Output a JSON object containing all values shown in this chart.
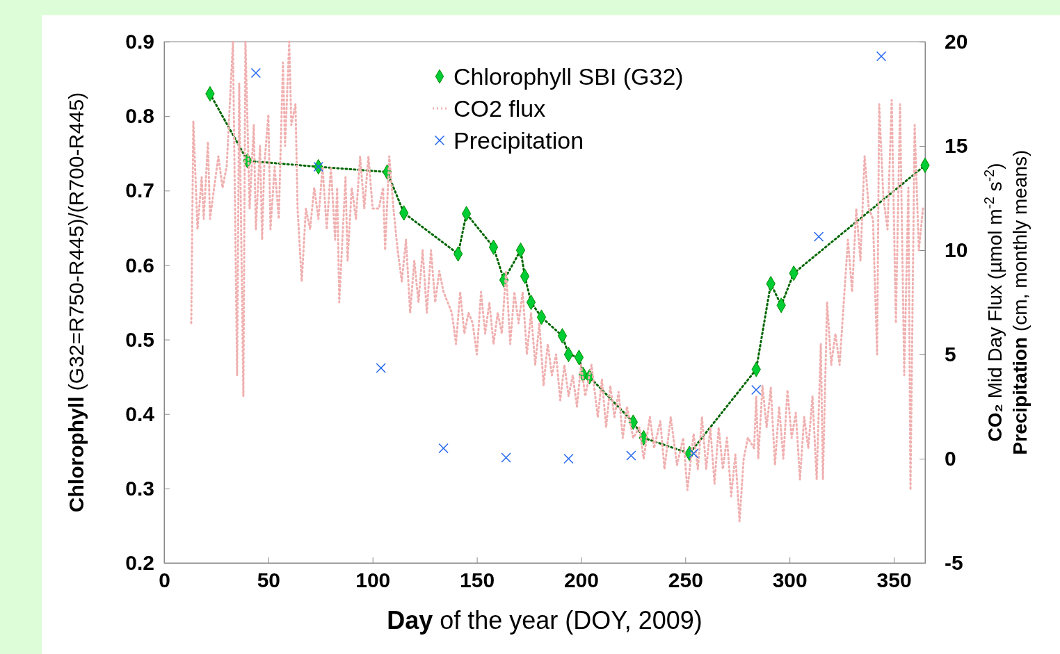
{
  "chart_data": {
    "type": "line",
    "xlabel": "Day of the year (DOY, 2009)",
    "ylabel": "Chlorophyll (G32=R750-R445)/(R700-R445)",
    "y2label": "CO₂ Mid Day Flux (µmol m$^{-2}$ s$^{-2}$)\nPrecipitation (cm, monthly means)",
    "xlim": [
      0,
      365
    ],
    "xticks": [
      0,
      50,
      100,
      150,
      200,
      250,
      300,
      350
    ],
    "ylim": [
      0.2,
      0.9
    ],
    "yticks": [
      0.2,
      0.3,
      0.4,
      0.5,
      0.6,
      0.7,
      0.8,
      0.9
    ],
    "y2lim": [
      -5,
      20
    ],
    "y2ticks": [
      -5,
      0,
      5,
      10,
      15,
      20
    ],
    "grid": false,
    "legend": "top",
    "series": [
      {
        "name": "Chlorophyll SBI (G32)",
        "color": "#00cc33",
        "marker": "diamond",
        "line_style": "dotted",
        "x": [
          22,
          40,
          74,
          107,
          115,
          141,
          145,
          158,
          163,
          171,
          173,
          176,
          181,
          191,
          194,
          199,
          201,
          204,
          225,
          230,
          252,
          284,
          291,
          296,
          302,
          365
        ],
        "values": [
          0.83,
          0.74,
          0.732,
          0.725,
          0.67,
          0.615,
          0.669,
          0.624,
          0.58,
          0.62,
          0.585,
          0.55,
          0.53,
          0.505,
          0.48,
          0.476,
          0.453,
          0.45,
          0.389,
          0.368,
          0.347,
          0.46,
          0.575,
          0.546,
          0.589,
          0.734
        ]
      },
      {
        "name": "CO2 flux",
        "axis": "y2",
        "color": "#f0b0b0",
        "marker": "none",
        "line_style": "dotted",
        "x": [
          13,
          14,
          16,
          18,
          19,
          21,
          22,
          24,
          26,
          28,
          30,
          33,
          35,
          36,
          38,
          39,
          41,
          43,
          44,
          46,
          47,
          48,
          50,
          51,
          53,
          55,
          57,
          58,
          60,
          61,
          63,
          64,
          66,
          68,
          70,
          72,
          74,
          76,
          78,
          80,
          82,
          83,
          84,
          86,
          87,
          88,
          90,
          92,
          94,
          96,
          98,
          100,
          103,
          105,
          106,
          108,
          110,
          112,
          114,
          116,
          118,
          120,
          122,
          124,
          126,
          128,
          130,
          132,
          134,
          138,
          140,
          142,
          144,
          146,
          148,
          150,
          152,
          154,
          156,
          158,
          160,
          162,
          164,
          166,
          168,
          170,
          172,
          174,
          176,
          178,
          180,
          182,
          184,
          186,
          188,
          190,
          192,
          194,
          196,
          198,
          200,
          202,
          205,
          208,
          210,
          212,
          214,
          216,
          218,
          220,
          222,
          225,
          228,
          230,
          233,
          235,
          238,
          240,
          243,
          246,
          249,
          251,
          254,
          256,
          258,
          260,
          262,
          264,
          266,
          268,
          270,
          272,
          274,
          276,
          278,
          280,
          283,
          284,
          285,
          287,
          289,
          291,
          293,
          295,
          297,
          299,
          301,
          303,
          305,
          307,
          309,
          311,
          313,
          315,
          316,
          318,
          320,
          322,
          324,
          326,
          328,
          330,
          332,
          334,
          336,
          338,
          340,
          342,
          343,
          345,
          347,
          349,
          351,
          353,
          355,
          357,
          358,
          360,
          362,
          364
        ],
        "values": [
          6.5,
          16.2,
          11,
          13.5,
          11.5,
          15.2,
          11.5,
          13,
          14.5,
          13,
          14,
          20,
          4,
          18,
          3,
          20,
          12,
          16,
          11,
          15,
          10.5,
          14,
          16.5,
          11,
          14,
          11.5,
          19,
          15,
          20,
          16,
          17,
          12,
          8.5,
          12,
          11,
          13,
          11.5,
          14,
          11,
          14,
          10.5,
          13,
          7.5,
          11.5,
          13.5,
          9.5,
          13,
          11.5,
          14.5,
          12,
          14.5,
          12,
          12,
          13,
          10,
          14.5,
          12,
          10,
          8.5,
          10.5,
          7,
          9.5,
          7.5,
          10,
          7,
          10,
          7.5,
          9,
          8,
          7,
          5.5,
          8,
          6,
          7,
          6.5,
          5,
          8,
          6,
          7.5,
          5.5,
          7,
          6,
          9,
          5.5,
          8,
          6.5,
          8,
          5,
          7,
          4.5,
          6.5,
          3.5,
          5.5,
          4,
          5,
          2.8,
          4.5,
          3,
          4,
          2.5,
          4.5,
          3,
          4.5,
          2,
          3.8,
          1.5,
          3.5,
          2,
          3.2,
          1,
          2.5,
          1,
          1.5,
          0,
          2,
          0.5,
          1.8,
          -0.5,
          2,
          -0.3,
          1,
          -1.5,
          1.2,
          -0.5,
          2,
          -0.5,
          1.5,
          -1.2,
          1.5,
          -0.5,
          1,
          -1.8,
          0.2,
          -3,
          0,
          1,
          0.5,
          3,
          0,
          3.5,
          1.5,
          3.4,
          -0.3,
          2.5,
          0,
          3.3,
          1,
          2.2,
          -1,
          2,
          0.5,
          3,
          -1,
          5.5,
          -1,
          7.5,
          4.5,
          6,
          4.5,
          7.5,
          10.5,
          8,
          12,
          9.5,
          14.5,
          12,
          11.5,
          5,
          17,
          12.5,
          11,
          17.2,
          6.5,
          17,
          4,
          13,
          -1.5,
          16,
          10,
          12
        ]
      },
      {
        "name": "Precipitation",
        "type": "scatter",
        "axis": "y2",
        "color": "#2266ee",
        "marker": "cross",
        "x": [
          44,
          74,
          104,
          134,
          164,
          194,
          224,
          254,
          284,
          314,
          344
        ],
        "values": [
          18.5,
          14,
          4.35,
          0.5,
          0.05,
          0,
          0.15,
          0.25,
          3.3,
          10.65,
          19.3
        ]
      }
    ]
  }
}
